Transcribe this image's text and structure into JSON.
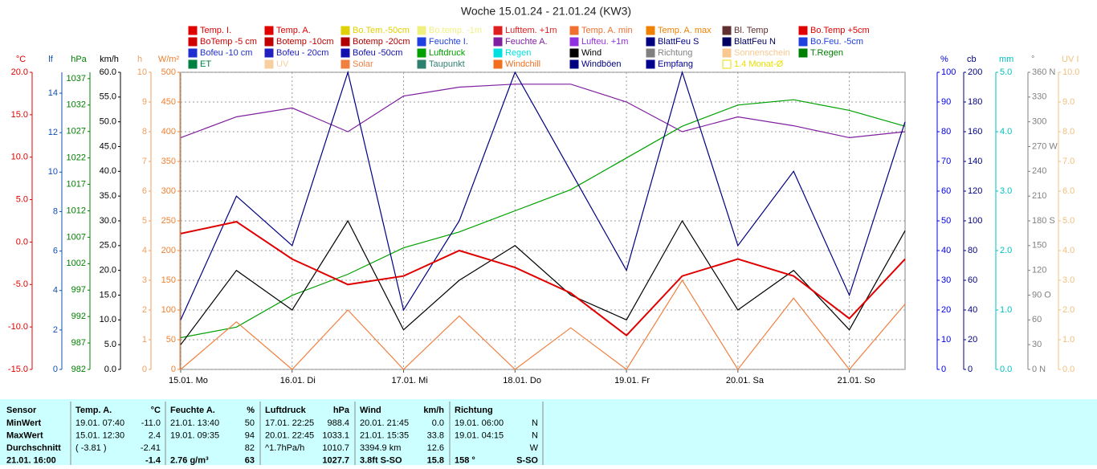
{
  "chart_data": {
    "type": "line",
    "title": "Woche 15.01.24 - 21.01.24 (KW3)",
    "legend": [
      {
        "name": "Temp. I.",
        "color": "#e00000"
      },
      {
        "name": "Temp. A.",
        "color": "#e00000"
      },
      {
        "name": "Bo.Tem.-50cm",
        "color": "#e0d000"
      },
      {
        "name": "Bo.temp. -1m",
        "color": "#f0f080"
      },
      {
        "name": "Lufttem. +1m",
        "color": "#e02020"
      },
      {
        "name": "Temp. A. min",
        "color": "#f07030"
      },
      {
        "name": "Temp. A. max",
        "color": "#f08000"
      },
      {
        "name": "Bl. Temp",
        "color": "#603030"
      },
      {
        "name": "Bo.Temp +5cm",
        "color": "#e00000"
      },
      {
        "name": "BoTemp -5 cm",
        "color": "#d00000"
      },
      {
        "name": "Botemp -10cm",
        "color": "#c00000"
      },
      {
        "name": "Botemp -20cm",
        "color": "#b00000"
      },
      {
        "name": "Feuchte I.",
        "color": "#2040e0"
      },
      {
        "name": "Feuchte A.",
        "color": "#8020a0"
      },
      {
        "name": "Lufteu. +1m",
        "color": "#9030e0"
      },
      {
        "name": "BlattFeu S",
        "color": "#000080"
      },
      {
        "name": "BlattFeu N",
        "color": "#000060"
      },
      {
        "name": "Bo.Feu. -5cm",
        "color": "#2040e0"
      },
      {
        "name": "Bofeu -10 cm",
        "color": "#2030d0"
      },
      {
        "name": "Bofeu - 20cm",
        "color": "#2020c0"
      },
      {
        "name": "Bofeu -50cm",
        "color": "#1010b0"
      },
      {
        "name": "Luftdruck",
        "color": "#00a000"
      },
      {
        "name": "Regen",
        "color": "#00e0e0"
      },
      {
        "name": "Wind",
        "color": "#000000"
      },
      {
        "name": "Richtung",
        "color": "#808080"
      },
      {
        "name": "Sonnenschein",
        "color": "#f8c890"
      },
      {
        "name": "T.Regen",
        "color": "#008000"
      },
      {
        "name": "ET",
        "color": "#008040"
      },
      {
        "name": "UV",
        "color": "#f8d0a0"
      },
      {
        "name": "Solar",
        "color": "#f08040"
      },
      {
        "name": "Taupunkt",
        "color": "#308070"
      },
      {
        "name": "Windchill",
        "color": "#f07020"
      },
      {
        "name": "Windböen",
        "color": "#000080"
      },
      {
        "name": "Empfang",
        "color": "#000090"
      },
      {
        "name": "1.4 Monat-Ø",
        "color": "#e8e000"
      }
    ],
    "axes": [
      {
        "label": "°C",
        "color": "#e00000",
        "side": "left",
        "lim": [
          -15,
          20
        ],
        "ticks": [
          {
            "value": 20,
            "label": "20.0"
          },
          {
            "value": 15,
            "label": "15.0"
          },
          {
            "value": 10,
            "label": "10.0"
          },
          {
            "value": 5,
            "label": "5.0"
          },
          {
            "value": 0,
            "label": "0.0"
          },
          {
            "value": -5,
            "label": "-5.0"
          },
          {
            "value": -10,
            "label": "-10.0"
          },
          {
            "value": -15,
            "label": "-15.0"
          }
        ]
      },
      {
        "label": "lf",
        "color": "#1050b0",
        "side": "left",
        "lim": [
          0,
          15.06
        ],
        "ticks": [
          14,
          12,
          10,
          8,
          6,
          4,
          2,
          0
        ]
      },
      {
        "label": "hPa",
        "color": "#008000",
        "side": "left",
        "lim": [
          982,
          1038.2
        ],
        "ticks": [
          1037,
          1032,
          1027,
          1022,
          1017,
          1012,
          1007,
          1002,
          997,
          992,
          987,
          982
        ]
      },
      {
        "label": "km/h",
        "color": "#000000",
        "side": "left",
        "lim": [
          0,
          60
        ],
        "ticks": [
          {
            "value": 60,
            "label": "60.0"
          },
          {
            "value": 55,
            "label": "55.0"
          },
          {
            "value": 50,
            "label": "50.0"
          },
          {
            "value": 45,
            "label": "45.0"
          },
          {
            "value": 40,
            "label": "40.0"
          },
          {
            "value": 35,
            "label": "35.0"
          },
          {
            "value": 30,
            "label": "30.0"
          },
          {
            "value": 25,
            "label": "25.0"
          },
          {
            "value": 20,
            "label": "20.0"
          },
          {
            "value": 15,
            "label": "15.0"
          },
          {
            "value": 10,
            "label": "10.0"
          },
          {
            "value": 5,
            "label": "5.0"
          },
          {
            "value": 0,
            "label": "0.0"
          }
        ]
      },
      {
        "label": "h",
        "color": "#f0a060",
        "side": "left",
        "lim": [
          0,
          10
        ],
        "ticks": [
          10,
          9,
          8,
          7,
          6,
          5,
          4,
          3,
          2,
          1,
          0
        ]
      },
      {
        "label": "W/m²",
        "color": "#f08030",
        "side": "left",
        "lim": [
          0,
          500
        ],
        "ticks": [
          500,
          450,
          400,
          350,
          300,
          250,
          200,
          150,
          100,
          50,
          0
        ]
      },
      {
        "label": "%",
        "color": "#0000e0",
        "side": "right",
        "lim": [
          0,
          100
        ],
        "ticks": [
          100,
          90,
          80,
          70,
          60,
          50,
          40,
          30,
          20,
          10,
          0
        ]
      },
      {
        "label": "cb",
        "color": "#000080",
        "side": "right",
        "lim": [
          0,
          200
        ],
        "ticks": [
          200,
          180,
          160,
          140,
          120,
          100,
          80,
          60,
          40,
          20,
          0
        ]
      },
      {
        "label": "mm",
        "color": "#00c0c0",
        "side": "right",
        "lim": [
          0,
          5
        ],
        "ticks": [
          {
            "value": 5,
            "label": "5.0"
          },
          {
            "value": 4,
            "label": "4.0"
          },
          {
            "value": 3,
            "label": "3.0"
          },
          {
            "value": 2,
            "label": "2.0"
          },
          {
            "value": 1,
            "label": "1.0"
          },
          {
            "value": 0,
            "label": "0.0"
          }
        ]
      },
      {
        "label": "°",
        "color": "#808080",
        "side": "right",
        "lim": [
          0,
          360
        ],
        "ticks": [
          {
            "value": 360,
            "label": "360 N"
          },
          330,
          300,
          {
            "value": 270,
            "label": "270 W"
          },
          240,
          210,
          {
            "value": 180,
            "label": "180 S"
          },
          150,
          120,
          {
            "value": 90,
            "label": "90 O"
          },
          60,
          30,
          {
            "value": 0,
            "label": "0 N"
          }
        ]
      },
      {
        "label": "UV I",
        "color": "#f0c080",
        "side": "right",
        "lim": [
          0,
          10
        ],
        "ticks": [
          {
            "value": 10,
            "label": "10.0"
          },
          {
            "value": 9,
            "label": "9.0"
          },
          {
            "value": 8,
            "label": "8.0"
          },
          {
            "value": 7,
            "label": "7.0"
          },
          {
            "value": 6,
            "label": "6.0"
          },
          {
            "value": 5,
            "label": "5.0"
          },
          {
            "value": 4,
            "label": "4.0"
          },
          {
            "value": 3,
            "label": "3.0"
          },
          {
            "value": 2,
            "label": "2.0"
          },
          {
            "value": 1,
            "label": "1.0"
          },
          {
            "value": 0,
            "label": "0.0"
          }
        ]
      }
    ],
    "xlim": [
      0,
      156
    ],
    "xticks": [
      {
        "value": 0,
        "label": "15.01. Mo"
      },
      {
        "value": 24,
        "label": "16.01. Di"
      },
      {
        "value": 48,
        "label": "17.01. Mi"
      },
      {
        "value": 72,
        "label": "18.01. Do"
      },
      {
        "value": 96,
        "label": "19.01. Fr"
      },
      {
        "value": 120,
        "label": "20.01. Sa"
      },
      {
        "value": 144,
        "label": "21.01. So"
      }
    ],
    "grid": true,
    "x": [
      0,
      12,
      24,
      36,
      48,
      60,
      72,
      84,
      96,
      108,
      120,
      132,
      144,
      156
    ],
    "series": [
      {
        "name": "Feuchte A.",
        "color": "#8020a0",
        "axis": "%",
        "values": [
          78,
          85,
          88,
          80,
          92,
          95,
          96,
          96,
          90,
          80,
          85,
          82,
          78,
          80
        ]
      },
      {
        "name": "Luftdruck",
        "color": "#00a000",
        "axis": "hPa",
        "values": [
          988,
          990,
          996,
          1000,
          1005,
          1008,
          1012,
          1016,
          1022,
          1028,
          1032,
          1033,
          1031,
          1028
        ]
      },
      {
        "name": "Solar",
        "color": "#f08040",
        "axis": "W/m²",
        "values": [
          0,
          80,
          0,
          100,
          0,
          90,
          0,
          70,
          0,
          150,
          0,
          120,
          0,
          110
        ]
      },
      {
        "name": "Wind",
        "color": "#000000",
        "axis": "km/h",
        "values": [
          5,
          20,
          12,
          30,
          8,
          18,
          25,
          15,
          10,
          30,
          12,
          20,
          8,
          28
        ]
      },
      {
        "name": "Windböen",
        "color": "#000080",
        "axis": "km/h",
        "values": [
          10,
          35,
          25,
          60,
          12,
          30,
          60,
          40,
          20,
          60,
          25,
          40,
          15,
          50
        ]
      },
      {
        "name": "Temp. A.",
        "color": "#e00000",
        "axis": "°C",
        "values": [
          1,
          2.4,
          -2,
          -5,
          -4,
          -1,
          -3,
          -6,
          -11,
          -4,
          -2,
          -4,
          -9,
          -2
        ]
      }
    ]
  },
  "table": {
    "header": [
      "Sensor",
      "Temp. A.",
      "°C",
      "Feuchte A.",
      "%",
      "Luftdruck",
      "hPa",
      "Wind",
      "km/h",
      "Richtung"
    ],
    "rows": [
      [
        "MinWert",
        "19.01. 07:40",
        "-11.0",
        "21.01. 13:40",
        "50",
        "17.01. 22:25",
        "988.4",
        "20.01. 21:45",
        "0.0",
        "19.01. 06:00",
        "N"
      ],
      [
        "MaxWert",
        "15.01. 12:30",
        "2.4",
        "19.01. 09:35",
        "94",
        "20.01. 22:45",
        "1033.1",
        "21.01. 15:35",
        "33.8",
        "19.01. 04:15",
        "N"
      ],
      [
        "Durchschnitt",
        "( -3.81 )",
        "-2.41",
        null,
        "82",
        "^1.7hPa/h",
        "1010.7",
        "3394.9 km",
        "12.6",
        null,
        "W"
      ],
      [
        "21.01. 16:00",
        null,
        "-1.4",
        "2.76 g/m³",
        "63",
        null,
        "1027.7",
        "3.8ft S-SO",
        "15.8",
        "158 °",
        "S-SO"
      ]
    ]
  }
}
